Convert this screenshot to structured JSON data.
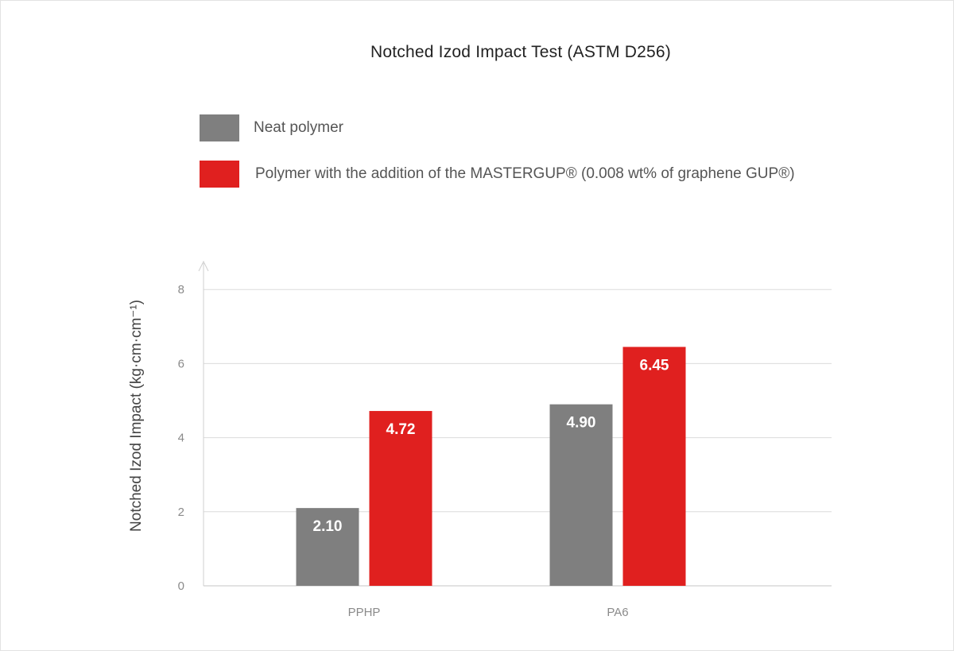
{
  "chart_data": {
    "type": "bar",
    "title": "Notched Izod Impact Test (ASTM D256)",
    "ylabel": "Notched Izod Impact (kg·cm·cm⁻¹)",
    "xlabel": "",
    "categories": [
      "PPHP",
      "PA6"
    ],
    "series": [
      {
        "name": "Neat polymer",
        "color": "#7f7f7f",
        "values": [
          2.1,
          4.9
        ],
        "labels": [
          "2.10",
          "4.90"
        ]
      },
      {
        "name": "Polymer with the addition of the MASTERGUP® (0.008 wt% of graphene GUP®)",
        "color": "#e0201f",
        "values": [
          4.72,
          6.45
        ],
        "labels": [
          "4.72",
          "6.45"
        ]
      }
    ],
    "ylim": [
      0,
      8
    ],
    "yticks": [
      0,
      2,
      4,
      6,
      8
    ],
    "grid": true,
    "legend_position": "top-left"
  }
}
